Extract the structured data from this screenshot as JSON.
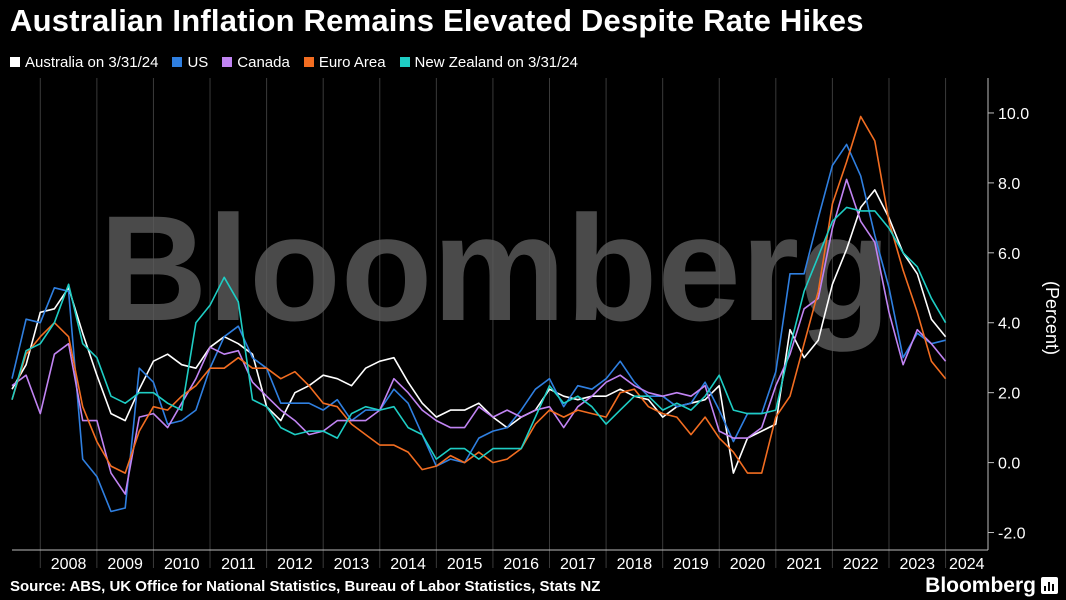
{
  "header": {
    "title": "Australian Inflation Remains Elevated Despite Rate Hikes"
  },
  "footer": {
    "source": "Source: ABS, UK Office for National Statistics, Bureau of Labor Statistics, Stats NZ",
    "brand": "Bloomberg"
  },
  "watermark": "Bloomberg",
  "chart_data": {
    "type": "line",
    "title": "Australian Inflation Remains Elevated Despite Rate Hikes",
    "ylabel": "(Percent)",
    "xlabel": "",
    "xlim": [
      2007.5,
      2024.75
    ],
    "ylim": [
      -2.5,
      11.0
    ],
    "yticks": [
      -2.0,
      0.0,
      2.0,
      4.0,
      6.0,
      8.0,
      10.0
    ],
    "ytick_labels": [
      "-2.0",
      "0.0",
      "2.0",
      "4.0",
      "6.0",
      "8.0",
      "10.0"
    ],
    "xtick_labels": [
      "2008",
      "2009",
      "2010",
      "2011",
      "2012",
      "2013",
      "2014",
      "2015",
      "2016",
      "2017",
      "2018",
      "2019",
      "2020",
      "2021",
      "2022",
      "2023",
      "2024"
    ],
    "grid": "vertical",
    "legend_position": "top-left",
    "series": [
      {
        "name": "Australia on 3/31/24",
        "color": "#ffffff",
        "x": [
          2007.5,
          2007.75,
          2008.0,
          2008.25,
          2008.5,
          2008.75,
          2009.0,
          2009.25,
          2009.5,
          2009.75,
          2010.0,
          2010.25,
          2010.5,
          2010.75,
          2011.0,
          2011.25,
          2011.5,
          2011.75,
          2012.0,
          2012.25,
          2012.5,
          2012.75,
          2013.0,
          2013.25,
          2013.5,
          2013.75,
          2014.0,
          2014.25,
          2014.5,
          2014.75,
          2015.0,
          2015.25,
          2015.5,
          2015.75,
          2016.0,
          2016.25,
          2016.5,
          2016.75,
          2017.0,
          2017.25,
          2017.5,
          2017.75,
          2018.0,
          2018.25,
          2018.5,
          2018.75,
          2019.0,
          2019.25,
          2019.5,
          2019.75,
          2020.0,
          2020.25,
          2020.5,
          2020.75,
          2021.0,
          2021.25,
          2021.5,
          2021.75,
          2022.0,
          2022.25,
          2022.5,
          2022.75,
          2023.0,
          2023.25,
          2023.5,
          2023.75,
          2024.0
        ],
        "values": [
          2.1,
          2.8,
          4.3,
          4.4,
          5.0,
          3.7,
          2.5,
          1.4,
          1.2,
          2.1,
          2.9,
          3.1,
          2.8,
          2.7,
          3.3,
          3.6,
          3.4,
          3.1,
          1.6,
          1.2,
          2.0,
          2.2,
          2.5,
          2.4,
          2.2,
          2.7,
          2.9,
          3.0,
          2.3,
          1.7,
          1.3,
          1.5,
          1.5,
          1.7,
          1.3,
          1.0,
          1.3,
          1.5,
          2.1,
          1.9,
          1.8,
          1.9,
          1.9,
          2.1,
          1.9,
          1.8,
          1.3,
          1.6,
          1.7,
          1.8,
          2.2,
          -0.3,
          0.7,
          0.9,
          1.1,
          3.8,
          3.0,
          3.5,
          5.1,
          6.1,
          7.3,
          7.8,
          7.0,
          6.0,
          5.4,
          4.1,
          3.6
        ]
      },
      {
        "name": "US",
        "color": "#2f7fe0",
        "x": [
          2007.5,
          2007.75,
          2008.0,
          2008.25,
          2008.5,
          2008.75,
          2009.0,
          2009.25,
          2009.5,
          2009.75,
          2010.0,
          2010.25,
          2010.5,
          2010.75,
          2011.0,
          2011.25,
          2011.5,
          2011.75,
          2012.0,
          2012.25,
          2012.5,
          2012.75,
          2013.0,
          2013.25,
          2013.5,
          2013.75,
          2014.0,
          2014.25,
          2014.5,
          2014.75,
          2015.0,
          2015.25,
          2015.5,
          2015.75,
          2016.0,
          2016.25,
          2016.5,
          2016.75,
          2017.0,
          2017.25,
          2017.5,
          2017.75,
          2018.0,
          2018.25,
          2018.5,
          2018.75,
          2019.0,
          2019.25,
          2019.5,
          2019.75,
          2020.0,
          2020.25,
          2020.5,
          2020.75,
          2021.0,
          2021.25,
          2021.5,
          2021.75,
          2022.0,
          2022.25,
          2022.5,
          2022.75,
          2023.0,
          2023.25,
          2023.5,
          2023.75,
          2024.0
        ],
        "values": [
          2.4,
          4.1,
          4.0,
          5.0,
          4.9,
          0.1,
          -0.4,
          -1.4,
          -1.3,
          2.7,
          2.3,
          1.1,
          1.2,
          1.5,
          2.7,
          3.6,
          3.9,
          3.0,
          2.7,
          1.7,
          1.7,
          1.7,
          1.5,
          1.8,
          1.2,
          1.5,
          1.5,
          2.1,
          1.7,
          0.8,
          -0.1,
          0.1,
          0.0,
          0.7,
          0.9,
          1.0,
          1.5,
          2.1,
          2.4,
          1.6,
          2.2,
          2.1,
          2.4,
          2.9,
          2.3,
          1.9,
          1.9,
          1.6,
          1.7,
          2.3,
          1.5,
          0.6,
          1.4,
          1.4,
          2.6,
          5.4,
          5.4,
          7.0,
          8.5,
          9.1,
          8.2,
          6.5,
          5.0,
          3.0,
          3.7,
          3.4,
          3.5
        ]
      },
      {
        "name": "Canada",
        "color": "#c184f3",
        "x": [
          2007.5,
          2007.75,
          2008.0,
          2008.25,
          2008.5,
          2008.75,
          2009.0,
          2009.25,
          2009.5,
          2009.75,
          2010.0,
          2010.25,
          2010.5,
          2010.75,
          2011.0,
          2011.25,
          2011.5,
          2011.75,
          2012.0,
          2012.25,
          2012.5,
          2012.75,
          2013.0,
          2013.25,
          2013.5,
          2013.75,
          2014.0,
          2014.25,
          2014.5,
          2014.75,
          2015.0,
          2015.25,
          2015.5,
          2015.75,
          2016.0,
          2016.25,
          2016.5,
          2016.75,
          2017.0,
          2017.25,
          2017.5,
          2017.75,
          2018.0,
          2018.25,
          2018.5,
          2018.75,
          2019.0,
          2019.25,
          2019.5,
          2019.75,
          2020.0,
          2020.25,
          2020.5,
          2020.75,
          2021.0,
          2021.25,
          2021.5,
          2021.75,
          2022.0,
          2022.25,
          2022.5,
          2022.75,
          2023.0,
          2023.25,
          2023.5,
          2023.75,
          2024.0
        ],
        "values": [
          2.2,
          2.5,
          1.4,
          3.1,
          3.4,
          1.2,
          1.2,
          -0.3,
          -0.9,
          1.3,
          1.4,
          1.0,
          1.7,
          2.4,
          3.3,
          3.1,
          3.2,
          2.3,
          1.9,
          1.5,
          1.2,
          0.8,
          0.9,
          1.2,
          1.2,
          1.2,
          1.5,
          2.4,
          2.0,
          1.5,
          1.2,
          1.0,
          1.0,
          1.6,
          1.3,
          1.5,
          1.3,
          1.5,
          1.6,
          1.0,
          1.6,
          1.9,
          2.3,
          2.5,
          2.2,
          2.0,
          1.9,
          2.0,
          1.9,
          2.2,
          0.9,
          0.7,
          0.7,
          1.0,
          2.2,
          3.1,
          4.4,
          4.7,
          6.7,
          8.1,
          6.9,
          6.3,
          4.3,
          2.8,
          3.8,
          3.4,
          2.9
        ]
      },
      {
        "name": "Euro Area",
        "color": "#f26d21",
        "x": [
          2007.5,
          2007.75,
          2008.0,
          2008.25,
          2008.5,
          2008.75,
          2009.0,
          2009.25,
          2009.5,
          2009.75,
          2010.0,
          2010.25,
          2010.5,
          2010.75,
          2011.0,
          2011.25,
          2011.5,
          2011.75,
          2012.0,
          2012.25,
          2012.5,
          2012.75,
          2013.0,
          2013.25,
          2013.5,
          2013.75,
          2014.0,
          2014.25,
          2014.5,
          2014.75,
          2015.0,
          2015.25,
          2015.5,
          2015.75,
          2016.0,
          2016.25,
          2016.5,
          2016.75,
          2017.0,
          2017.25,
          2017.5,
          2017.75,
          2018.0,
          2018.25,
          2018.5,
          2018.75,
          2019.0,
          2019.25,
          2019.5,
          2019.75,
          2020.0,
          2020.25,
          2020.5,
          2020.75,
          2021.0,
          2021.25,
          2021.5,
          2021.75,
          2022.0,
          2022.25,
          2022.5,
          2022.75,
          2023.0,
          2023.25,
          2023.5,
          2023.75,
          2024.0
        ],
        "values": [
          1.8,
          3.1,
          3.6,
          4.0,
          3.6,
          1.6,
          0.6,
          -0.1,
          -0.3,
          0.9,
          1.6,
          1.5,
          1.9,
          2.2,
          2.7,
          2.7,
          3.0,
          2.7,
          2.7,
          2.4,
          2.6,
          2.2,
          1.7,
          1.6,
          1.1,
          0.8,
          0.5,
          0.5,
          0.3,
          -0.2,
          -0.1,
          0.2,
          0.0,
          0.3,
          0.0,
          0.1,
          0.4,
          1.1,
          1.5,
          1.3,
          1.5,
          1.4,
          1.3,
          2.0,
          2.1,
          1.6,
          1.4,
          1.3,
          0.8,
          1.3,
          0.7,
          0.3,
          -0.3,
          -0.3,
          1.3,
          1.9,
          3.4,
          4.9,
          7.4,
          8.6,
          9.9,
          9.2,
          6.9,
          5.5,
          4.3,
          2.9,
          2.4
        ]
      },
      {
        "name": "New Zealand on 3/31/24",
        "color": "#1ecdc4",
        "x": [
          2007.5,
          2007.75,
          2008.0,
          2008.25,
          2008.5,
          2008.75,
          2009.0,
          2009.25,
          2009.5,
          2009.75,
          2010.0,
          2010.25,
          2010.5,
          2010.75,
          2011.0,
          2011.25,
          2011.5,
          2011.75,
          2012.0,
          2012.25,
          2012.5,
          2012.75,
          2013.0,
          2013.25,
          2013.5,
          2013.75,
          2014.0,
          2014.25,
          2014.5,
          2014.75,
          2015.0,
          2015.25,
          2015.5,
          2015.75,
          2016.0,
          2016.25,
          2016.5,
          2016.75,
          2017.0,
          2017.25,
          2017.5,
          2017.75,
          2018.0,
          2018.25,
          2018.5,
          2018.75,
          2019.0,
          2019.25,
          2019.5,
          2019.75,
          2020.0,
          2020.25,
          2020.5,
          2020.75,
          2021.0,
          2021.25,
          2021.5,
          2021.75,
          2022.0,
          2022.25,
          2022.5,
          2022.75,
          2023.0,
          2023.25,
          2023.5,
          2023.75,
          2024.0
        ],
        "values": [
          1.8,
          3.2,
          3.4,
          4.0,
          5.1,
          3.4,
          3.0,
          1.9,
          1.7,
          2.0,
          2.0,
          1.7,
          1.5,
          4.0,
          4.5,
          5.3,
          4.6,
          1.8,
          1.6,
          1.0,
          0.8,
          0.9,
          0.9,
          0.7,
          1.4,
          1.6,
          1.5,
          1.6,
          1.0,
          0.8,
          0.1,
          0.4,
          0.4,
          0.1,
          0.4,
          0.4,
          0.4,
          1.3,
          2.2,
          1.7,
          1.9,
          1.6,
          1.1,
          1.5,
          1.9,
          1.9,
          1.5,
          1.7,
          1.5,
          1.9,
          2.5,
          1.5,
          1.4,
          1.4,
          1.5,
          3.3,
          4.9,
          5.9,
          6.9,
          7.3,
          7.2,
          7.2,
          6.7,
          6.0,
          5.6,
          4.7,
          4.0
        ]
      }
    ]
  }
}
